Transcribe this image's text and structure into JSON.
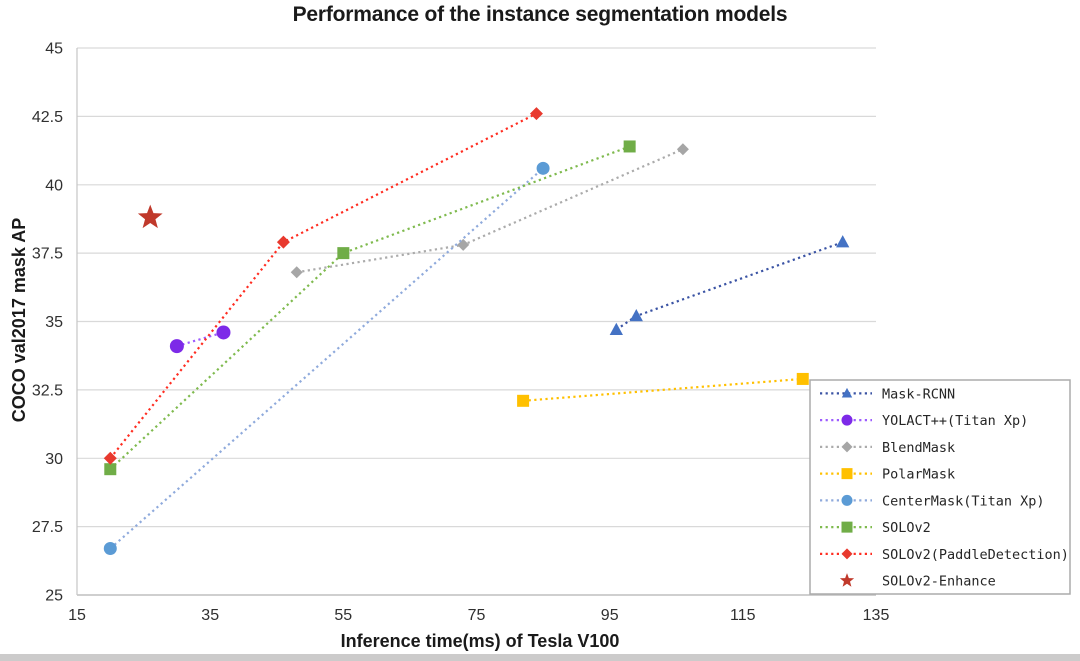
{
  "page": {
    "background": "#ffffff",
    "bottom_bar_color": "#cccbcb"
  },
  "chart_data": {
    "type": "line",
    "subtype": "scatter-line-dotted",
    "title": "Performance of the instance segmentation models",
    "xlabel": "Inference time(ms) of Tesla V100",
    "ylabel": "COCO val2017 mask AP",
    "xlim": [
      15,
      135
    ],
    "ylim": [
      25,
      45
    ],
    "x_ticks": [
      15,
      35,
      55,
      75,
      95,
      115,
      135
    ],
    "y_ticks": [
      25,
      27.5,
      30,
      32.5,
      35,
      37.5,
      40,
      42.5,
      45
    ],
    "grid": "horizontal",
    "gridline_color": "#d9d9d9",
    "axis_line_color": "#bfbfbf",
    "tick_label_color": "#303030",
    "legend_position": "bottom-right",
    "legend_border_color": "#ababab",
    "series": [
      {
        "name": "Mask-RCNN",
        "marker": "triangle",
        "line_color": "#3a53a4",
        "marker_color": "#4472c4",
        "marker_size": 7,
        "points": [
          [
            96,
            34.7
          ],
          [
            99,
            35.2
          ],
          [
            130,
            37.9
          ]
        ]
      },
      {
        "name": "YOLACT++(Titan Xp)",
        "marker": "circle",
        "line_color": "#9d5cff",
        "marker_color": "#7d2ae8",
        "marker_size": 7,
        "points": [
          [
            30,
            34.1
          ],
          [
            37,
            34.6
          ]
        ]
      },
      {
        "name": "BlendMask",
        "marker": "diamond",
        "line_color": "#ababab",
        "marker_color": "#a6a6a6",
        "marker_size": 6,
        "points": [
          [
            48,
            36.8
          ],
          [
            73,
            37.8
          ],
          [
            106,
            41.3
          ]
        ]
      },
      {
        "name": "PolarMask",
        "marker": "square",
        "line_color": "#ffc000",
        "marker_color": "#ffc000",
        "marker_size": 6,
        "points": [
          [
            82,
            32.1
          ],
          [
            124,
            32.9
          ]
        ]
      },
      {
        "name": "CenterMask(Titan Xp)",
        "marker": "circle",
        "line_color": "#8faadc",
        "marker_color": "#5b9bd5",
        "marker_size": 6.5,
        "points": [
          [
            20,
            26.7
          ],
          [
            85,
            40.6
          ]
        ]
      },
      {
        "name": "SOLOv2",
        "marker": "square",
        "line_color": "#7fba4e",
        "marker_color": "#70ad47",
        "marker_size": 6,
        "points": [
          [
            20,
            29.6
          ],
          [
            55,
            37.5
          ],
          [
            98,
            41.4
          ]
        ]
      },
      {
        "name": "SOLOv2(PaddleDetection)",
        "marker": "diamond",
        "line_color": "#ff2d21",
        "marker_color": "#e8392e",
        "marker_size": 6.5,
        "points": [
          [
            20,
            30.0
          ],
          [
            46,
            37.9
          ],
          [
            84,
            42.6
          ]
        ]
      },
      {
        "name": "SOLOv2-Enhance",
        "marker": "star",
        "line_color": "none",
        "marker_color": "#c0392b",
        "marker_size": 13,
        "points": [
          [
            26,
            38.8
          ]
        ]
      }
    ]
  }
}
